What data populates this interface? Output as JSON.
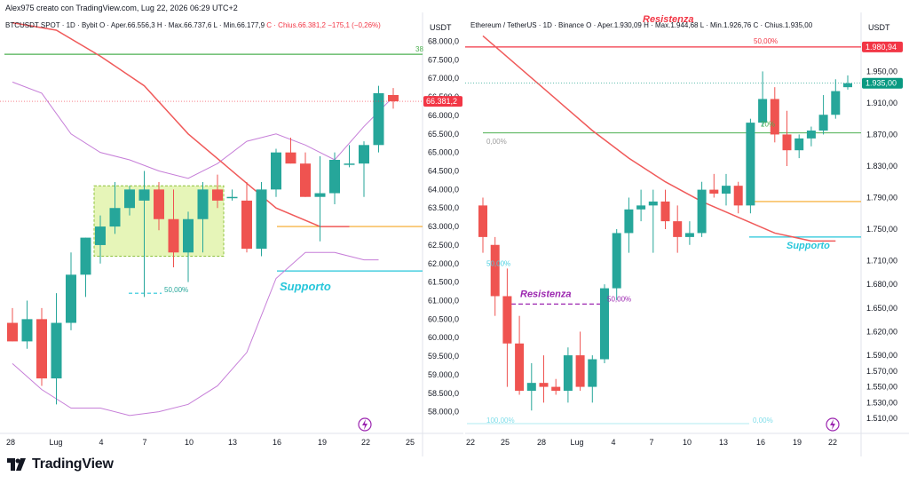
{
  "header": {
    "text": "Alex975 creato con TradingView.com, Lug 22, 2026 06:29 UTC+2"
  },
  "left_chart": {
    "legend": {
      "symbol": "BTCUSDT SPOT · 1D · Bybit",
      "open": "O · Aper.66.556,3",
      "high": "H · Max.66.737,6",
      "low": "L · Min.66.177,9",
      "close": "C · Chius.66.381,2",
      "change": "−175,1 (−0,26%)"
    },
    "currency": "USDT",
    "y_ticks": [
      "68.000,0",
      "67.500,0",
      "67.000,0",
      "66.500,0",
      "66.000,0",
      "65.500,0",
      "65.000,0",
      "64.500,0",
      "64.000,0",
      "63.500,0",
      "63.000,0",
      "62.500,0",
      "62.000,0",
      "61.500,0",
      "61.000,0",
      "60.500,0",
      "60.000,0",
      "59.500,0",
      "59.000,0",
      "58.500,0",
      "58.000,0"
    ],
    "x_ticks": [
      "28",
      "Lug",
      "4",
      "7",
      "10",
      "13",
      "16",
      "19",
      "22",
      "25"
    ],
    "price_label": "66.381,2",
    "fib_label_pct": "50,00%",
    "edge_fib_label": "38",
    "support_label": "Supporto",
    "colors": {
      "up": "#26a69a",
      "down": "#ef5350",
      "ma": "#f05a5a",
      "bb": "#c67ed8",
      "zone_fill": "#e6f5b8",
      "zone_border": "#8fc23d"
    },
    "chart_data": {
      "type": "candlestick",
      "ylim": [
        57800,
        68300
      ],
      "candles": [
        {
          "o": 60400,
          "h": 60800,
          "l": 59900,
          "c": 59900
        },
        {
          "o": 59900,
          "h": 61000,
          "l": 59700,
          "c": 60500
        },
        {
          "o": 60500,
          "h": 60800,
          "l": 58700,
          "c": 58900
        },
        {
          "o": 58900,
          "h": 61200,
          "l": 58200,
          "c": 60400
        },
        {
          "o": 60400,
          "h": 62300,
          "l": 60200,
          "c": 61700
        },
        {
          "o": 61700,
          "h": 62700,
          "l": 61100,
          "c": 62700
        },
        {
          "o": 62500,
          "h": 63300,
          "l": 62000,
          "c": 63000
        },
        {
          "o": 63000,
          "h": 64200,
          "l": 62800,
          "c": 63500
        },
        {
          "o": 63500,
          "h": 64100,
          "l": 63300,
          "c": 64000
        },
        {
          "o": 63700,
          "h": 64500,
          "l": 61100,
          "c": 64000
        },
        {
          "o": 64000,
          "h": 64200,
          "l": 62900,
          "c": 63200
        },
        {
          "o": 63200,
          "h": 64000,
          "l": 61900,
          "c": 62300
        },
        {
          "o": 62300,
          "h": 63400,
          "l": 61500,
          "c": 63200
        },
        {
          "o": 63200,
          "h": 64200,
          "l": 62300,
          "c": 64000
        },
        {
          "o": 64000,
          "h": 64400,
          "l": 63500,
          "c": 63700
        },
        {
          "o": 63800,
          "h": 64000,
          "l": 63700,
          "c": 63800
        },
        {
          "o": 63700,
          "h": 64200,
          "l": 62300,
          "c": 62400
        },
        {
          "o": 62400,
          "h": 64200,
          "l": 62200,
          "c": 64000
        },
        {
          "o": 64000,
          "h": 65100,
          "l": 63800,
          "c": 65000
        },
        {
          "o": 65000,
          "h": 65400,
          "l": 64700,
          "c": 64700
        },
        {
          "o": 64700,
          "h": 65000,
          "l": 63800,
          "c": 63800
        },
        {
          "o": 63800,
          "h": 64900,
          "l": 62600,
          "c": 63900
        },
        {
          "o": 63900,
          "h": 65000,
          "l": 63600,
          "c": 64800
        },
        {
          "o": 64700,
          "h": 65200,
          "l": 64600,
          "c": 64700
        },
        {
          "o": 64700,
          "h": 65300,
          "l": 63800,
          "c": 65200
        },
        {
          "o": 65200,
          "h": 66800,
          "l": 65000,
          "c": 66600
        },
        {
          "o": 66550,
          "h": 66740,
          "l": 66180,
          "c": 66380
        }
      ],
      "ma_line": [
        [
          0,
          68500
        ],
        [
          3,
          68300
        ],
        [
          6,
          67600
        ],
        [
          9,
          66800
        ],
        [
          12,
          65500
        ],
        [
          15,
          64500
        ],
        [
          18,
          63500
        ],
        [
          21,
          63000
        ],
        [
          23,
          63000
        ]
      ],
      "bb_upper": [
        [
          0,
          66900
        ],
        [
          2,
          66600
        ],
        [
          4,
          65500
        ],
        [
          6,
          65000
        ],
        [
          8,
          64800
        ],
        [
          10,
          64500
        ],
        [
          12,
          64300
        ],
        [
          14,
          64700
        ],
        [
          16,
          65300
        ],
        [
          18,
          65500
        ],
        [
          20,
          65200
        ],
        [
          22,
          64800
        ],
        [
          24,
          65700
        ],
        [
          26,
          66500
        ]
      ],
      "bb_lower": [
        [
          0,
          59300
        ],
        [
          2,
          58600
        ],
        [
          4,
          58100
        ],
        [
          6,
          58100
        ],
        [
          8,
          57900
        ],
        [
          10,
          58000
        ],
        [
          12,
          58200
        ],
        [
          14,
          58700
        ],
        [
          16,
          59600
        ],
        [
          18,
          61600
        ],
        [
          20,
          62300
        ],
        [
          22,
          62300
        ],
        [
          24,
          62100
        ],
        [
          25,
          62100
        ]
      ],
      "green_level": 67650,
      "orange_level": 63000,
      "blue_level": 61800,
      "zone": {
        "from_index": 6,
        "to_index": 14,
        "top": 64100,
        "bottom": 62200
      },
      "fib_level": 61200
    }
  },
  "right_chart": {
    "legend": {
      "symbol": "Ethereum / TetherUS · 1D · Binance",
      "open": "O · Aper.1.930,09",
      "high": "H · Max.1.944,68",
      "low": "L · Min.1.926,76",
      "close": "C · Chius.1.935,00"
    },
    "currency": "USDT",
    "y_ticks": [
      "1.950,00",
      "1.910,00",
      "1.870,00",
      "1.830,00",
      "1.790,00",
      "1.750,00",
      "1.710,00",
      "1.680,00",
      "1.650,00",
      "1.620,00",
      "1.590,00",
      "1.570,00",
      "1.550,00",
      "1.530,00",
      "1.510,00"
    ],
    "x_ticks": [
      "22",
      "25",
      "28",
      "Lug",
      "4",
      "7",
      "10",
      "13",
      "16",
      "19",
      "22"
    ],
    "top_label": "1.980,94",
    "price_label": "1.935,00",
    "resistenza_top": "Resistenza",
    "resistenza_mid": "Resistenza",
    "supporto": "Supporto",
    "fib_labels": {
      "top": "50,00%",
      "p0": "0,00%",
      "p50a": "50,00%",
      "p50b": "50,00%",
      "p20": "20%",
      "p100": "100,00%",
      "p0b": "0,00%"
    },
    "chart_data": {
      "type": "candlestick",
      "ylim": [
        1500,
        2000
      ],
      "candles": [
        {
          "o": 1780,
          "h": 1790,
          "l": 1720,
          "c": 1740
        },
        {
          "o": 1730,
          "h": 1740,
          "l": 1640,
          "c": 1665
        },
        {
          "o": 1665,
          "h": 1700,
          "l": 1550,
          "c": 1605
        },
        {
          "o": 1605,
          "h": 1640,
          "l": 1540,
          "c": 1545
        },
        {
          "o": 1545,
          "h": 1580,
          "l": 1520,
          "c": 1555
        },
        {
          "o": 1555,
          "h": 1590,
          "l": 1530,
          "c": 1550
        },
        {
          "o": 1550,
          "h": 1560,
          "l": 1540,
          "c": 1545
        },
        {
          "o": 1545,
          "h": 1600,
          "l": 1530,
          "c": 1590
        },
        {
          "o": 1590,
          "h": 1620,
          "l": 1545,
          "c": 1550
        },
        {
          "o": 1550,
          "h": 1590,
          "l": 1530,
          "c": 1585
        },
        {
          "o": 1585,
          "h": 1680,
          "l": 1580,
          "c": 1675
        },
        {
          "o": 1675,
          "h": 1750,
          "l": 1660,
          "c": 1745
        },
        {
          "o": 1745,
          "h": 1790,
          "l": 1720,
          "c": 1775
        },
        {
          "o": 1775,
          "h": 1800,
          "l": 1760,
          "c": 1780
        },
        {
          "o": 1780,
          "h": 1800,
          "l": 1720,
          "c": 1785
        },
        {
          "o": 1785,
          "h": 1800,
          "l": 1750,
          "c": 1760
        },
        {
          "o": 1760,
          "h": 1780,
          "l": 1720,
          "c": 1740
        },
        {
          "o": 1740,
          "h": 1760,
          "l": 1730,
          "c": 1745
        },
        {
          "o": 1745,
          "h": 1810,
          "l": 1740,
          "c": 1800
        },
        {
          "o": 1800,
          "h": 1820,
          "l": 1790,
          "c": 1795
        },
        {
          "o": 1795,
          "h": 1820,
          "l": 1780,
          "c": 1805
        },
        {
          "o": 1805,
          "h": 1810,
          "l": 1770,
          "c": 1780
        },
        {
          "o": 1780,
          "h": 1890,
          "l": 1770,
          "c": 1885
        },
        {
          "o": 1885,
          "h": 1950,
          "l": 1880,
          "c": 1915
        },
        {
          "o": 1915,
          "h": 1930,
          "l": 1860,
          "c": 1870
        },
        {
          "o": 1870,
          "h": 1900,
          "l": 1830,
          "c": 1850
        },
        {
          "o": 1850,
          "h": 1870,
          "l": 1840,
          "c": 1865
        },
        {
          "o": 1865,
          "h": 1880,
          "l": 1855,
          "c": 1875
        },
        {
          "o": 1875,
          "h": 1920,
          "l": 1870,
          "c": 1895
        },
        {
          "o": 1895,
          "h": 1940,
          "l": 1890,
          "c": 1925
        },
        {
          "o": 1930,
          "h": 1945,
          "l": 1927,
          "c": 1935
        }
      ],
      "ma_line": [
        [
          0,
          1995
        ],
        [
          3,
          1955
        ],
        [
          6,
          1915
        ],
        [
          9,
          1875
        ],
        [
          12,
          1840
        ],
        [
          15,
          1810
        ],
        [
          18,
          1785
        ],
        [
          21,
          1765
        ],
        [
          24,
          1745
        ],
        [
          27,
          1735
        ],
        [
          29,
          1735
        ]
      ],
      "red_level": 1981,
      "green_level": 1872,
      "orange_level": 1785,
      "blue_level": 1740,
      "purple_level": 1655,
      "pct100_level": 1500
    }
  },
  "footer": {
    "brand": "TradingView"
  }
}
